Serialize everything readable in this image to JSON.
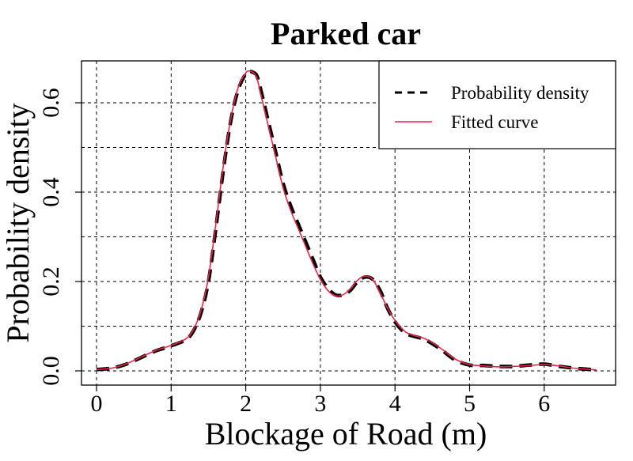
{
  "chart_data": {
    "type": "line",
    "title": "Parked car",
    "xlabel": "Blockage of Road (m)",
    "ylabel": "Probability density",
    "xlim": [
      -0.2,
      6.9
    ],
    "ylim": [
      -0.03,
      0.7
    ],
    "xticks": [
      0,
      1,
      2,
      3,
      4,
      5,
      6
    ],
    "yticks": [
      0.0,
      0.2,
      0.4,
      0.6
    ],
    "ytick_labels": [
      "0.0",
      "0.2",
      "0.4",
      "0.6"
    ],
    "grid": true,
    "legend_position": "top-right",
    "series": [
      {
        "name": "Probability density",
        "color": "#000000",
        "style": "dashed",
        "x": [
          0.0,
          0.2,
          0.4,
          0.6,
          0.8,
          1.0,
          1.2,
          1.3,
          1.4,
          1.5,
          1.6,
          1.7,
          1.8,
          1.9,
          2.0,
          2.05,
          2.1,
          2.15,
          2.2,
          2.3,
          2.4,
          2.5,
          2.6,
          2.7,
          2.8,
          2.9,
          3.0,
          3.1,
          3.2,
          3.3,
          3.4,
          3.5,
          3.6,
          3.7,
          3.8,
          3.9,
          4.0,
          4.1,
          4.2,
          4.4,
          4.6,
          4.8,
          5.0,
          5.2,
          5.4,
          5.6,
          5.8,
          6.0,
          6.2,
          6.4,
          6.7
        ],
        "values": [
          0.003,
          0.006,
          0.015,
          0.03,
          0.045,
          0.056,
          0.07,
          0.09,
          0.13,
          0.2,
          0.32,
          0.45,
          0.56,
          0.63,
          0.665,
          0.67,
          0.668,
          0.66,
          0.63,
          0.56,
          0.49,
          0.42,
          0.37,
          0.33,
          0.29,
          0.25,
          0.21,
          0.185,
          0.17,
          0.17,
          0.18,
          0.2,
          0.21,
          0.205,
          0.18,
          0.14,
          0.11,
          0.09,
          0.08,
          0.07,
          0.05,
          0.025,
          0.013,
          0.012,
          0.01,
          0.01,
          0.013,
          0.015,
          0.01,
          0.006,
          0.002
        ]
      },
      {
        "name": "Fitted curve",
        "color": "#e8234a",
        "style": "solid",
        "x": [
          0.0,
          0.2,
          0.4,
          0.6,
          0.8,
          1.0,
          1.2,
          1.3,
          1.4,
          1.5,
          1.6,
          1.7,
          1.8,
          1.9,
          2.0,
          2.05,
          2.1,
          2.15,
          2.2,
          2.3,
          2.4,
          2.5,
          2.6,
          2.7,
          2.8,
          2.9,
          3.0,
          3.1,
          3.2,
          3.3,
          3.4,
          3.5,
          3.6,
          3.7,
          3.8,
          3.9,
          4.0,
          4.1,
          4.2,
          4.4,
          4.6,
          4.8,
          5.0,
          5.2,
          5.4,
          5.6,
          5.8,
          6.0,
          6.2,
          6.4,
          6.7
        ],
        "values": [
          0.003,
          0.006,
          0.016,
          0.031,
          0.046,
          0.057,
          0.072,
          0.093,
          0.135,
          0.21,
          0.33,
          0.46,
          0.565,
          0.635,
          0.667,
          0.671,
          0.668,
          0.655,
          0.62,
          0.55,
          0.48,
          0.41,
          0.36,
          0.32,
          0.28,
          0.24,
          0.205,
          0.18,
          0.168,
          0.17,
          0.183,
          0.203,
          0.212,
          0.205,
          0.175,
          0.14,
          0.113,
          0.093,
          0.082,
          0.072,
          0.052,
          0.027,
          0.014,
          0.011,
          0.009,
          0.01,
          0.012,
          0.014,
          0.011,
          0.006,
          0.002
        ]
      }
    ]
  }
}
